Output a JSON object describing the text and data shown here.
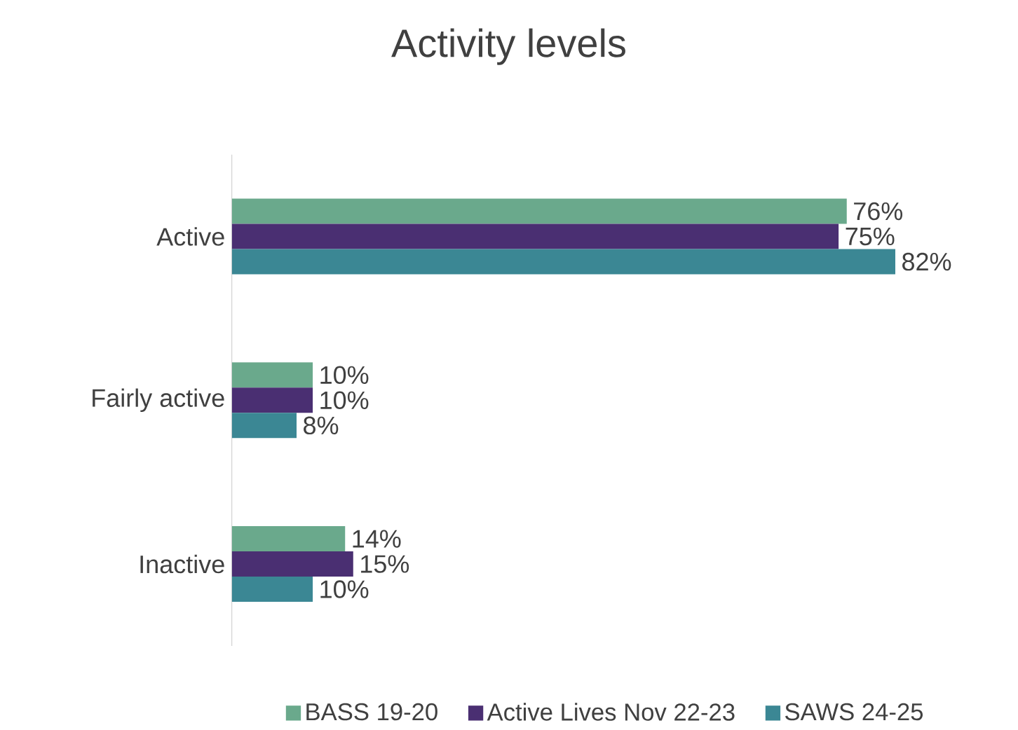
{
  "chart_data": {
    "type": "bar",
    "orientation": "horizontal",
    "title": "Activity levels",
    "categories": [
      "Active",
      "Fairly active",
      "Inactive"
    ],
    "series": [
      {
        "name": "BASS 19-20",
        "color": "#6aa98c",
        "values": [
          76,
          10,
          14
        ],
        "value_labels": [
          "76%",
          "10%",
          "14%"
        ]
      },
      {
        "name": "Active Lives Nov 22-23",
        "color": "#4a2f72",
        "values": [
          75,
          10,
          15
        ],
        "value_labels": [
          "75%",
          "10%",
          "15%"
        ]
      },
      {
        "name": "SAWS 24-25",
        "color": "#3b8794",
        "values": [
          82,
          8,
          10
        ],
        "value_labels": [
          "82%",
          "8%",
          "10%"
        ]
      }
    ],
    "legend": "bottom"
  }
}
